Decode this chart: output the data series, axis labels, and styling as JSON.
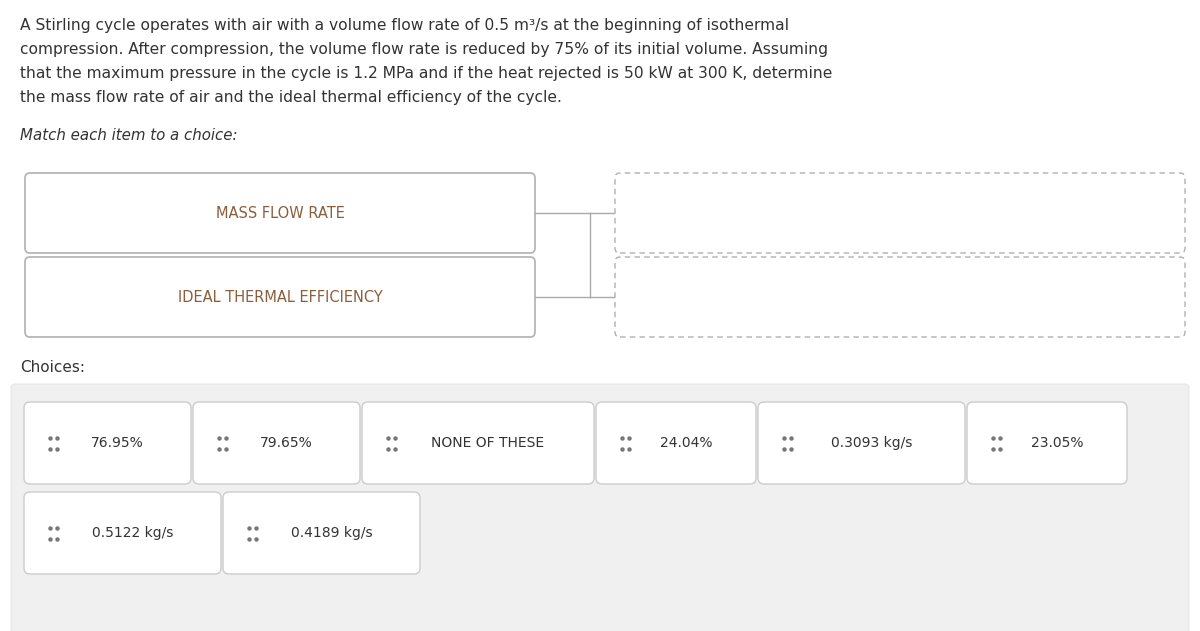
{
  "problem_text_lines": [
    "A Stirling cycle operates with air with a volume flow rate of 0.5 m³/s at the beginning of isothermal",
    "compression. After compression, the volume flow rate is reduced by 75% of its initial volume. Assuming",
    "that the maximum pressure in the cycle is 1.2 MPa and if the heat rejected is 50 kW at 300 K, determine",
    "the mass flow rate of air and the ideal thermal efficiency of the cycle."
  ],
  "match_label": "Match each item to a choice:",
  "items": [
    "MASS FLOW RATE",
    "IDEAL THERMAL EFFICIENCY"
  ],
  "choices_label": "Choices:",
  "choices_row1": [
    "76.95%",
    "79.65%",
    "NONE OF THESE",
    "24.04%",
    "0.3093 kg/s",
    "23.05%"
  ],
  "choices_row2": [
    "0.5122 kg/s",
    "0.4189 kg/s"
  ],
  "bg_color": "#ffffff",
  "text_color": "#333333",
  "item_text_color": "#8B5E3C",
  "item_box_color": "#ffffff",
  "item_box_border": "#b0b0b0",
  "answer_box_border": "#b0b0b0",
  "choice_box_color": "#ffffff",
  "choice_box_border": "#cccccc",
  "choices_bg": "#f0f0f0",
  "dot_color": "#777777",
  "line_color": "#aaaaaa"
}
